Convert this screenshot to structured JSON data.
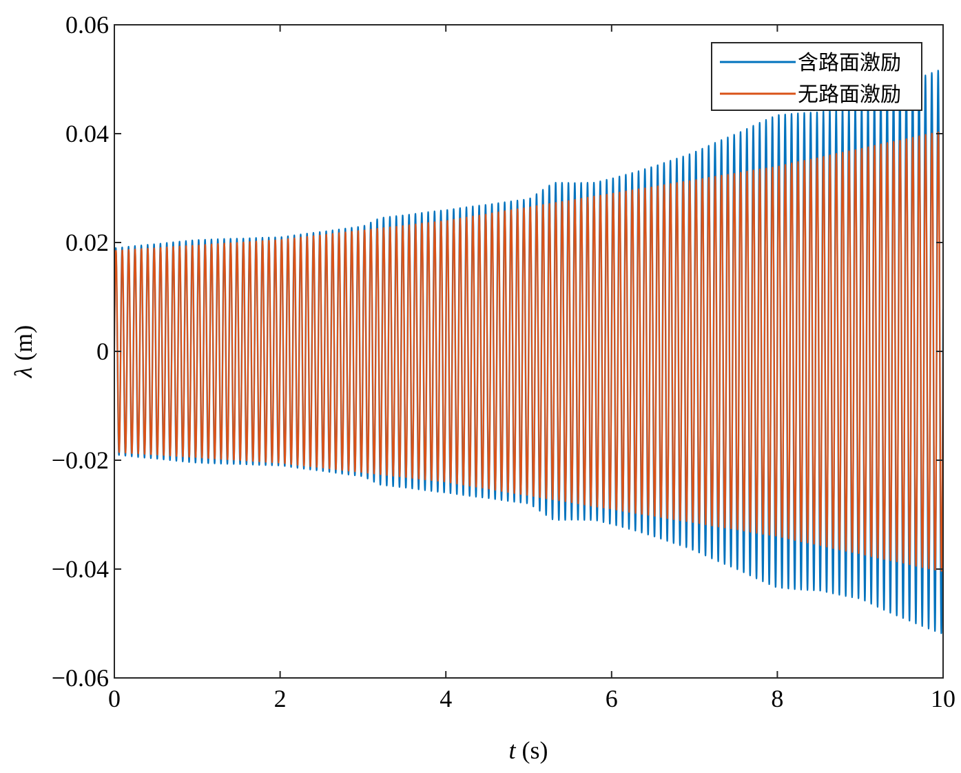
{
  "chart_data": {
    "type": "line",
    "title": "",
    "xlabel_var": "t",
    "xlabel_unit": " (s)",
    "ylabel_var": "λ",
    "ylabel_unit": " (m)",
    "xlim": [
      0,
      10
    ],
    "ylim": [
      -0.06,
      0.06
    ],
    "x_ticks": [
      0,
      2,
      4,
      6,
      8,
      10
    ],
    "x_tick_labels": [
      "0",
      "2",
      "4",
      "6",
      "8",
      "10"
    ],
    "y_ticks": [
      -0.06,
      -0.04,
      -0.02,
      0,
      0.02,
      0.04,
      0.06
    ],
    "y_tick_labels": [
      "−0.06",
      "−0.04",
      "−0.02",
      "0",
      "0.02",
      "0.04",
      "0.06"
    ],
    "grid": false,
    "legend_position": "top-right",
    "oscillation_frequency_hz": 13,
    "series": [
      {
        "name": "含路面激励",
        "color": "#0072BD",
        "envelope": {
          "t": [
            0,
            1,
            2,
            3,
            3.2,
            4,
            4.5,
            5,
            5.3,
            5.8,
            6.3,
            6.9,
            7.5,
            8,
            8.5,
            9,
            9.5,
            10
          ],
          "amplitude": [
            0.019,
            0.0205,
            0.021,
            0.023,
            0.0245,
            0.026,
            0.027,
            0.028,
            0.031,
            0.031,
            0.033,
            0.036,
            0.04,
            0.0435,
            0.044,
            0.0455,
            0.049,
            0.052
          ]
        }
      },
      {
        "name": "无路面激励",
        "color": "#D95319",
        "envelope": {
          "t": [
            0,
            2,
            4,
            6,
            8,
            10
          ],
          "amplitude": [
            0.0185,
            0.0205,
            0.024,
            0.029,
            0.034,
            0.0405
          ]
        }
      }
    ]
  }
}
